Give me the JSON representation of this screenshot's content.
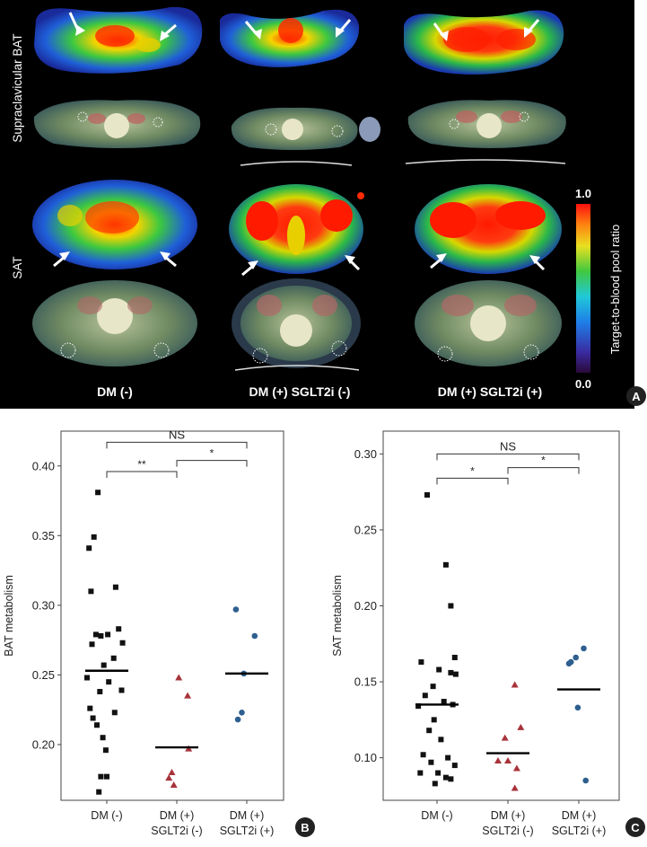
{
  "panel_a": {
    "row_labels": [
      "Supraclavicular BAT",
      "SAT"
    ],
    "column_labels": [
      "DM (-)",
      "DM (+) SGLT2i (-)",
      "DM (+) SGLT2i (+)"
    ],
    "colorbar": {
      "label": "Target-to-blood pool ratio",
      "max": "1.0",
      "min": "0.0"
    },
    "panel_letter": "A"
  },
  "chart_data": [
    {
      "type": "scatter",
      "panel_letter": "B",
      "ylabel": "BAT metabolism",
      "ylim": [
        0.16,
        0.425
      ],
      "yticks": [
        0.2,
        0.25,
        0.3,
        0.35,
        0.4
      ],
      "ytick_labels": [
        "0.20",
        "0.25",
        "0.30",
        "0.35",
        "0.40"
      ],
      "categories": [
        "DM (-)",
        "DM (+)\nSGLT2i (-)",
        "DM (+)\nSGLT2i (+)"
      ],
      "series": [
        {
          "name": "DM (-)",
          "marker": "square",
          "color": "#111111",
          "mean": 0.253,
          "points": [
            [
              -0.09,
              0.381
            ],
            [
              -0.18,
              0.341
            ],
            [
              -0.13,
              0.349
            ],
            [
              0.09,
              0.313
            ],
            [
              -0.16,
              0.31
            ],
            [
              0.01,
              0.279
            ],
            [
              -0.11,
              0.279
            ],
            [
              -0.06,
              0.278
            ],
            [
              0.12,
              0.283
            ],
            [
              -0.15,
              0.272
            ],
            [
              0.16,
              0.273
            ],
            [
              0.07,
              0.262
            ],
            [
              -0.03,
              0.257
            ],
            [
              0.02,
              0.245
            ],
            [
              -0.2,
              0.248
            ],
            [
              0.15,
              0.239
            ],
            [
              -0.07,
              0.238
            ],
            [
              -0.17,
              0.226
            ],
            [
              0.08,
              0.223
            ],
            [
              -0.14,
              0.219
            ],
            [
              -0.1,
              0.214
            ],
            [
              -0.04,
              0.205
            ],
            [
              -0.01,
              0.196
            ],
            [
              -0.06,
              0.177
            ],
            [
              0.0,
              0.177
            ],
            [
              -0.08,
              0.166
            ]
          ]
        },
        {
          "name": "DM (+) SGLT2i (-)",
          "marker": "triangle",
          "color": "#a8333a",
          "mean": 0.198,
          "points": [
            [
              0.02,
              0.248
            ],
            [
              0.11,
              0.235
            ],
            [
              0.12,
              0.197
            ],
            [
              -0.05,
              0.18
            ],
            [
              -0.08,
              0.176
            ],
            [
              -0.03,
              0.171
            ]
          ]
        },
        {
          "name": "DM (+) SGLT2i (+)",
          "marker": "circle",
          "color": "#2e5f8f",
          "mean": 0.251,
          "points": [
            [
              -0.11,
              0.297
            ],
            [
              0.08,
              0.278
            ],
            [
              -0.03,
              0.251
            ],
            [
              -0.05,
              0.223
            ],
            [
              -0.09,
              0.218
            ]
          ]
        }
      ],
      "brackets": [
        {
          "from": 0,
          "to": 2,
          "label": "NS",
          "y": 0.417
        },
        {
          "from": 0,
          "to": 1,
          "label": "**",
          "y": 0.396
        },
        {
          "from": 1,
          "to": 2,
          "label": "*",
          "y": 0.404
        }
      ]
    },
    {
      "type": "scatter",
      "panel_letter": "C",
      "ylabel": "SAT metabolism",
      "ylim": [
        0.072,
        0.315
      ],
      "yticks": [
        0.1,
        0.15,
        0.2,
        0.25,
        0.3
      ],
      "ytick_labels": [
        "0.10",
        "0.15",
        "0.20",
        "0.25",
        "0.30"
      ],
      "categories": [
        "DM (-)",
        "DM (+)\nSGLT2i (-)",
        "DM (+)\nSGLT2i (+)"
      ],
      "series": [
        {
          "name": "DM (-)",
          "marker": "square",
          "color": "#111111",
          "mean": 0.135,
          "points": [
            [
              -0.1,
              0.273
            ],
            [
              0.09,
              0.227
            ],
            [
              0.14,
              0.2
            ],
            [
              0.18,
              0.166
            ],
            [
              -0.16,
              0.163
            ],
            [
              0.02,
              0.158
            ],
            [
              0.14,
              0.156
            ],
            [
              0.19,
              0.155
            ],
            [
              -0.04,
              0.147
            ],
            [
              -0.12,
              0.141
            ],
            [
              0.07,
              0.137
            ],
            [
              -0.19,
              0.134
            ],
            [
              0.16,
              0.135
            ],
            [
              -0.03,
              0.125
            ],
            [
              -0.08,
              0.118
            ],
            [
              0.04,
              0.112
            ],
            [
              -0.14,
              0.102
            ],
            [
              0.11,
              0.1
            ],
            [
              -0.06,
              0.097
            ],
            [
              0.18,
              0.095
            ],
            [
              -0.17,
              0.09
            ],
            [
              0.01,
              0.09
            ],
            [
              0.09,
              0.087
            ],
            [
              0.14,
              0.086
            ],
            [
              -0.02,
              0.083
            ]
          ]
        },
        {
          "name": "DM (+) SGLT2i (-)",
          "marker": "triangle",
          "color": "#a8333a",
          "mean": 0.103,
          "points": [
            [
              0.07,
              0.148
            ],
            [
              0.13,
              0.12
            ],
            [
              -0.03,
              0.113
            ],
            [
              -0.1,
              0.098
            ],
            [
              0.0,
              0.098
            ],
            [
              0.09,
              0.093
            ],
            [
              0.07,
              0.08
            ]
          ]
        },
        {
          "name": "DM (+) SGLT2i (+)",
          "marker": "circle",
          "color": "#2e5f8f",
          "mean": 0.145,
          "points": [
            [
              0.05,
              0.172
            ],
            [
              -0.03,
              0.166
            ],
            [
              -0.08,
              0.163
            ],
            [
              -0.1,
              0.162
            ],
            [
              -0.01,
              0.133
            ],
            [
              0.07,
              0.085
            ]
          ]
        }
      ],
      "brackets": [
        {
          "from": 0,
          "to": 2,
          "label": "NS",
          "y": 0.3
        },
        {
          "from": 0,
          "to": 1,
          "label": "*",
          "y": 0.284
        },
        {
          "from": 1,
          "to": 2,
          "label": "*",
          "y": 0.291
        }
      ]
    }
  ]
}
